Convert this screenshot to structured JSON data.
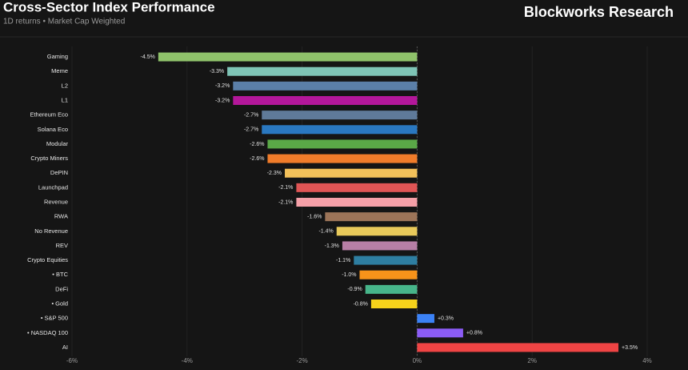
{
  "chart_data": {
    "type": "bar",
    "orientation": "horizontal",
    "title": "Cross-Sector Index Performance",
    "subtitle": "1D returns • Market Cap Weighted",
    "brand": "Blockworks Research",
    "categories": [
      "Gaming",
      "Meme",
      "L2",
      "L1",
      "Ethereum Eco",
      "Solana Eco",
      "Modular",
      "Crypto Miners",
      "DePIN",
      "Launchpad",
      "Revenue",
      "RWA",
      "No Revenue",
      "REV",
      "Crypto Equities",
      "• BTC",
      "DeFi",
      "• Gold",
      "• S&P 500",
      "• NASDAQ 100",
      "AI"
    ],
    "values": [
      -4.5,
      -3.3,
      -3.2,
      -3.2,
      -2.7,
      -2.7,
      -2.6,
      -2.6,
      -2.3,
      -2.1,
      -2.1,
      -1.6,
      -1.4,
      -1.3,
      -1.1,
      -1.0,
      -0.9,
      -0.8,
      0.3,
      0.8,
      3.5
    ],
    "value_labels": [
      "-4.5%",
      "-3.3%",
      "-3.2%",
      "-3.2%",
      "-2.7%",
      "-2.7%",
      "-2.6%",
      "-2.6%",
      "-2.3%",
      "-2.1%",
      "-2.1%",
      "-1.6%",
      "-1.4%",
      "-1.3%",
      "-1.1%",
      "-1.0%",
      "-0.9%",
      "-0.8%",
      "+0.3%",
      "+0.8%",
      "+3.5%"
    ],
    "colors": [
      "#8fc26a",
      "#7ec4b6",
      "#5b7fa8",
      "#b3179a",
      "#5f7a99",
      "#2a78c0",
      "#5aa847",
      "#f07c2a",
      "#f3c15a",
      "#e05555",
      "#f5a0a8",
      "#9c7458",
      "#e8c95a",
      "#b77fa6",
      "#2e7ea1",
      "#f7931a",
      "#47b58a",
      "#f6d31b",
      "#3b82f6",
      "#8b5cf6",
      "#ef4444"
    ],
    "xlim": [
      -6,
      4
    ],
    "xticks": [
      {
        "value": -6,
        "label": "-6%"
      },
      {
        "value": -4,
        "label": "-4%"
      },
      {
        "value": -2,
        "label": "-2%"
      },
      {
        "value": 0,
        "label": "0%"
      },
      {
        "value": 2,
        "label": "2%"
      },
      {
        "value": 4,
        "label": "4%"
      }
    ],
    "grid": true
  }
}
